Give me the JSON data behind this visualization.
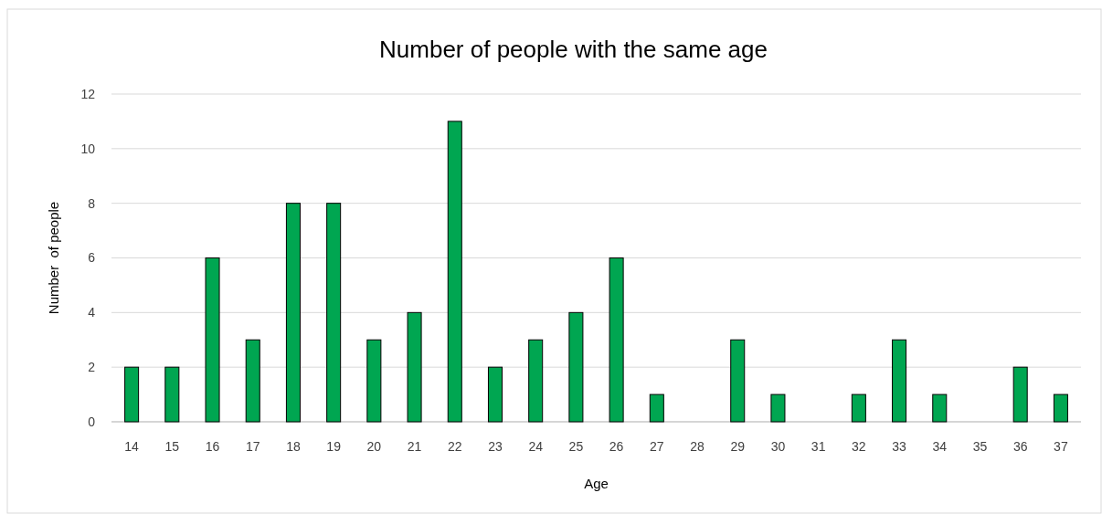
{
  "chart_data": {
    "type": "bar",
    "title": "Number of people with the same age",
    "xlabel": "Age",
    "ylabel": "Number  of people",
    "categories": [
      "14",
      "15",
      "16",
      "17",
      "18",
      "19",
      "20",
      "21",
      "22",
      "23",
      "24",
      "25",
      "26",
      "27",
      "28",
      "29",
      "30",
      "31",
      "32",
      "33",
      "34",
      "35",
      "36",
      "37"
    ],
    "values": [
      2,
      2,
      6,
      3,
      8,
      8,
      3,
      4,
      11,
      2,
      3,
      4,
      6,
      1,
      0,
      3,
      1,
      0,
      1,
      3,
      1,
      0,
      2,
      1
    ],
    "color": "#00a651",
    "ylim": [
      0,
      12
    ],
    "yticks": [
      0,
      2,
      4,
      6,
      8,
      10,
      12
    ],
    "grid": "y"
  }
}
